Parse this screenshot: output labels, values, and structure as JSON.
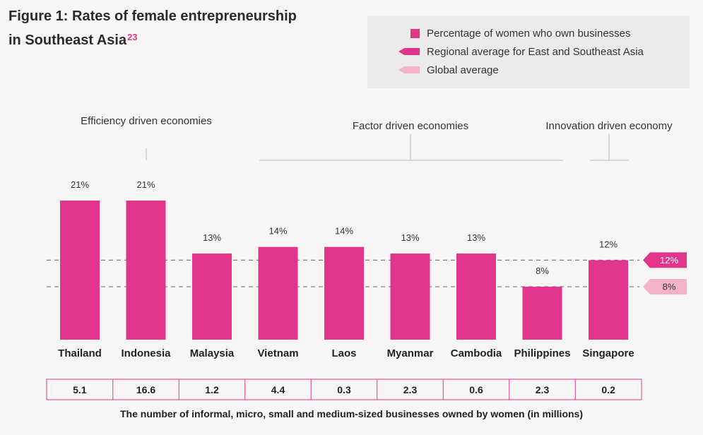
{
  "title": {
    "line1": "Figure 1: Rates of female entrepreneurship",
    "line2": "in Southeast Asia",
    "superscript": "23"
  },
  "legend": {
    "items": [
      {
        "label": "Percentage of women who own businesses",
        "marker": "square"
      },
      {
        "label": "Regional average for East and Southeast Asia",
        "marker": "regional-tag"
      },
      {
        "label": "Global average",
        "marker": "global-tag"
      }
    ]
  },
  "colors": {
    "bar": "#e0358b",
    "regional": "#e0358b",
    "global": "#f4b3cb",
    "border": "#e0358b"
  },
  "chart_data": {
    "type": "bar",
    "title": "Figure 1: Rates of female entrepreneurship in Southeast Asia",
    "categories": [
      "Thailand",
      "Indonesia",
      "Malaysia",
      "Vietnam",
      "Laos",
      "Myanmar",
      "Cambodia",
      "Philippines",
      "Singapore"
    ],
    "values": [
      21,
      21,
      13,
      14,
      14,
      13,
      13,
      8,
      12
    ],
    "value_labels": [
      "21%",
      "21%",
      "13%",
      "14%",
      "14%",
      "13%",
      "13%",
      "8%",
      "12%"
    ],
    "unit": "%",
    "ylim": [
      0,
      21
    ],
    "reference_lines": [
      {
        "name": "Regional average for East and Southeast Asia",
        "value": 12,
        "label": "12%"
      },
      {
        "name": "Global average",
        "value": 8,
        "label": "8%"
      }
    ],
    "groups": [
      {
        "label": "Efficiency driven economies",
        "members": [
          "Thailand",
          "Indonesia",
          "Malaysia"
        ]
      },
      {
        "label": "Factor driven economies",
        "members": [
          "Vietnam",
          "Laos",
          "Myanmar",
          "Cambodia",
          "Philippines"
        ]
      },
      {
        "label": "Innovation driven economy",
        "members": [
          "Singapore"
        ]
      }
    ],
    "table": {
      "caption": "The number of informal, micro, small and medium-sized businesses owned by women (in millions)",
      "values": [
        "5.1",
        "16.6",
        "1.2",
        "4.4",
        "0.3",
        "2.3",
        "0.6",
        "2.3",
        "0.2"
      ]
    },
    "grid": false,
    "legend_position": "top-right"
  }
}
